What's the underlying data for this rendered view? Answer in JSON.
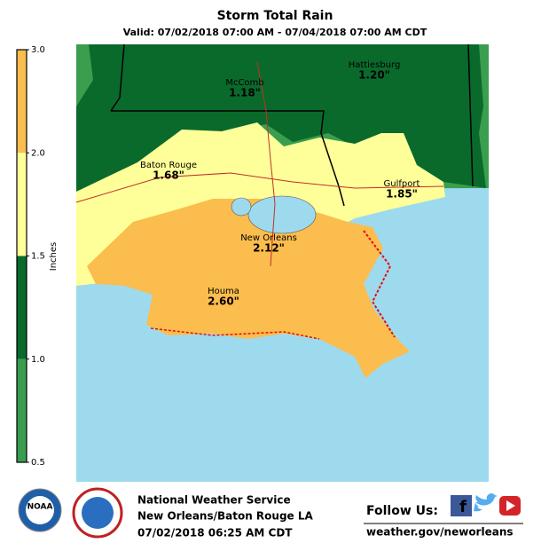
{
  "title": "Storm Total Rain",
  "subtitle": "Valid: 07/02/2018 07:00 AM - 07/04/2018 07:00 AM CDT",
  "legend": {
    "label": "Inches",
    "ticks": [
      0.5,
      {
        "value": 1,
        "label": "1.0"
      },
      1.5,
      {
        "value": 2,
        "label": "2.0"
      },
      {
        "value": 3,
        "label": "3.0"
      }
    ],
    "colors": [
      "#3a9e4e",
      "#0a6a2c",
      "#ffff99",
      "#fbbd4d"
    ]
  },
  "cities": [
    {
      "name": "McComb",
      "value": 1.18,
      "value_label": "1.18\""
    },
    {
      "name": "Hattiesburg",
      "value": 1.2,
      "value_label": "1.20\""
    },
    {
      "name": "Baton Rouge",
      "value": 1.68,
      "value_label": "1.68\""
    },
    {
      "name": "Gulfport",
      "value": 1.85,
      "value_label": "1.85\""
    },
    {
      "name": "New Orleans",
      "value": 2.12,
      "value_label": "2.12\""
    },
    {
      "name": "Houma",
      "value": 2.6,
      "value_label": "2.60\""
    }
  ],
  "footer": {
    "logo": "NOAA",
    "office": "National Weather Service",
    "location": "New Orleans/Baton Rouge LA",
    "issued": "07/02/2018 06:25 AM CDT",
    "follow": "Follow Us:",
    "url": "weather.gov/neworleans"
  }
}
